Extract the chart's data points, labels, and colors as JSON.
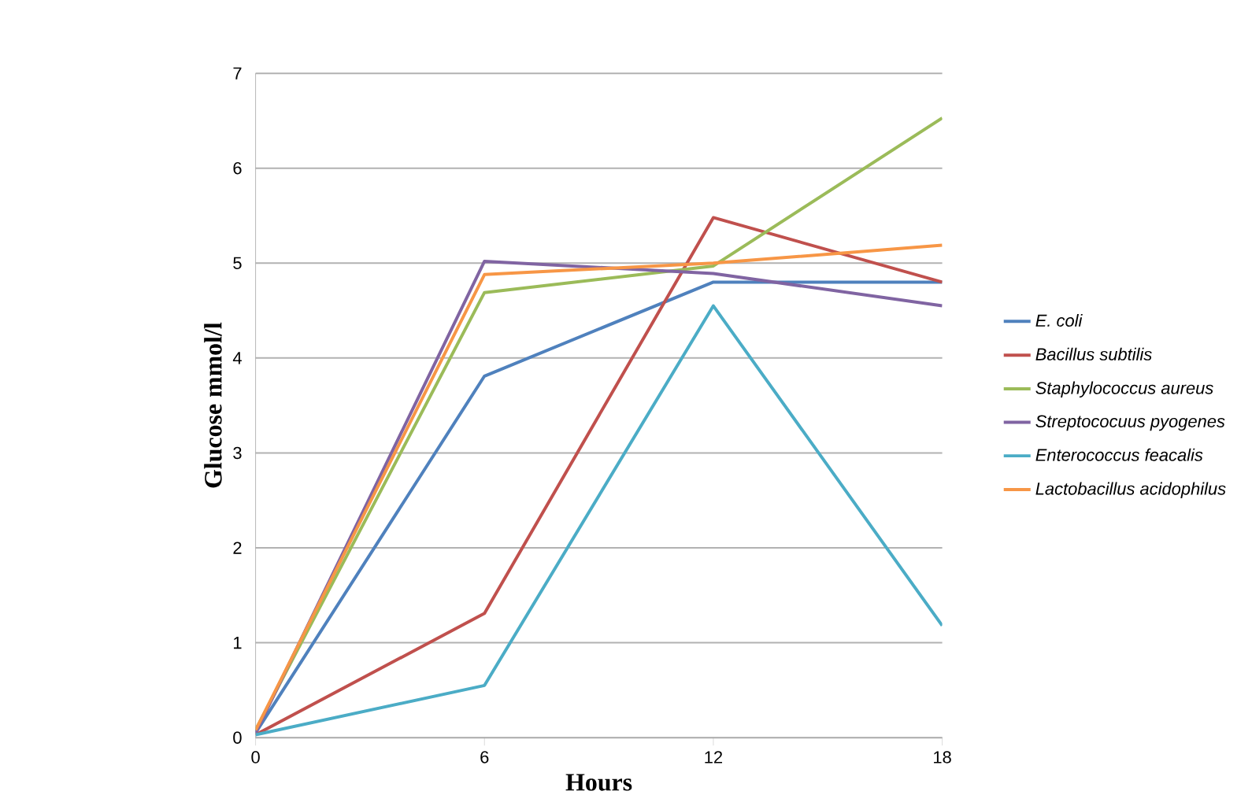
{
  "chart_data": {
    "type": "line",
    "xlabel": "Hours",
    "ylabel": "Glucose mmol/l",
    "x": [
      0,
      6,
      12,
      18
    ],
    "xlim": [
      0,
      18
    ],
    "xticks": [
      0,
      6,
      12,
      18
    ],
    "ylim": [
      0,
      7
    ],
    "yticks": [
      0,
      1,
      2,
      3,
      4,
      5,
      6,
      7
    ],
    "grid": "y",
    "legend": "right",
    "marker": "none",
    "line_style": "solid",
    "series": [
      {
        "name": "E. coli",
        "color": "#4f81bd",
        "values": [
          0.05,
          3.81,
          4.8,
          4.8
        ]
      },
      {
        "name": "Bacillus subtilis",
        "color": "#c0504d",
        "values": [
          0.03,
          1.31,
          5.48,
          4.8
        ]
      },
      {
        "name": "Staphylococcus aureus",
        "color": "#9bbb59",
        "values": [
          0.08,
          4.69,
          4.97,
          6.53
        ]
      },
      {
        "name": "Streptococuus pyogenes",
        "color": "#8064a2",
        "values": [
          0.05,
          5.02,
          4.89,
          4.55
        ]
      },
      {
        "name": "Enterococcus feacalis",
        "color": "#4bacc6",
        "values": [
          0.03,
          0.55,
          4.55,
          1.18
        ]
      },
      {
        "name": "Lactobacillus acidophilus",
        "color": "#f79646",
        "values": [
          0.08,
          4.88,
          5.0,
          5.19
        ]
      }
    ]
  }
}
